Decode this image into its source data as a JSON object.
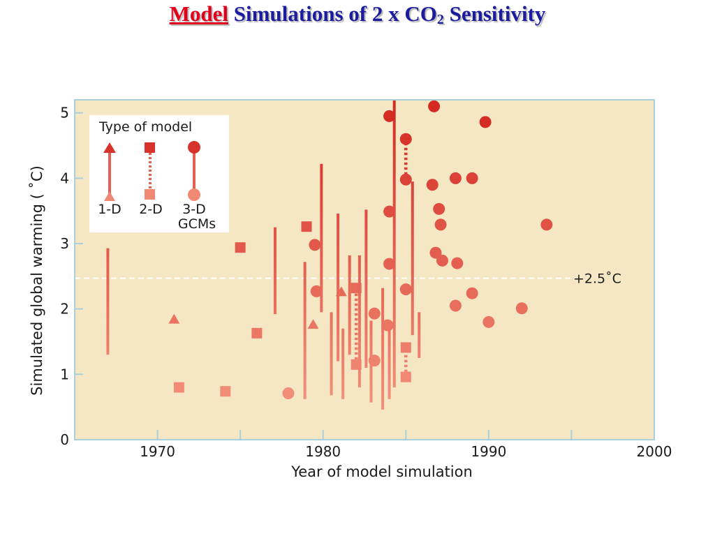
{
  "slide_title": {
    "part1": "Model",
    "part2": "Simulations of 2 x CO",
    "sub": "2",
    "part3": "Sensitivity"
  },
  "chart_data": {
    "type": "scatter",
    "xlabel": "Year of model simulation",
    "ylabel": "Simulated global warming ( ˚C)",
    "xlim": [
      1965,
      2000
    ],
    "ylim": [
      0,
      5.2
    ],
    "x_ticks": [
      1970,
      1980,
      1990,
      2000
    ],
    "y_ticks": [
      0,
      1,
      2,
      3,
      4,
      5
    ],
    "reference_line": {
      "y": 2.47,
      "label": "+2.5˚C"
    },
    "legend": {
      "title": "Type of model",
      "placement": "top-left",
      "entries": [
        "1-D",
        "2-D",
        "3-D",
        "GCMs"
      ]
    },
    "colors": {
      "background": "#f6e7c4",
      "frame": "#a8d0dc",
      "high": "#d42a22",
      "low": "#f2907a",
      "legend_box": "#ffffff"
    },
    "ranges_1d": [
      {
        "x": 1967.0,
        "low": 1.3,
        "high": 2.93
      },
      {
        "x": 1977.1,
        "low": 1.92,
        "high": 3.25
      },
      {
        "x": 1978.9,
        "low": 0.62,
        "high": 2.72
      },
      {
        "x": 1979.9,
        "low": 1.95,
        "high": 4.22
      },
      {
        "x": 1980.5,
        "low": 0.68,
        "high": 1.95
      },
      {
        "x": 1980.9,
        "low": 1.2,
        "high": 3.46
      },
      {
        "x": 1981.2,
        "low": 0.62,
        "high": 1.7
      },
      {
        "x": 1981.6,
        "low": 1.3,
        "high": 2.82
      },
      {
        "x": 1982.2,
        "low": 0.8,
        "high": 2.82
      },
      {
        "x": 1982.6,
        "low": 1.1,
        "high": 3.52
      },
      {
        "x": 1982.9,
        "low": 0.57,
        "high": 1.82
      },
      {
        "x": 1983.6,
        "low": 0.46,
        "high": 2.32
      },
      {
        "x": 1984.0,
        "low": 0.62,
        "high": 1.76
      },
      {
        "x": 1984.3,
        "low": 0.8,
        "high": 5.2
      },
      {
        "x": 1985.4,
        "low": 1.6,
        "high": 3.95
      },
      {
        "x": 1985.8,
        "low": 1.25,
        "high": 1.95
      }
    ],
    "ranges_2d": [
      {
        "x": 1982.0,
        "low": 1.15,
        "high": 2.32
      },
      {
        "x": 1985.0,
        "low": 0.96,
        "high": 1.41
      }
    ],
    "ranges_3d": [
      {
        "x": 1985.0,
        "low": 3.98,
        "high": 4.6
      }
    ],
    "points_1d": [
      {
        "x": 1971.0,
        "y": 1.84
      },
      {
        "x": 1979.4,
        "y": 1.76
      },
      {
        "x": 1981.1,
        "y": 2.26
      }
    ],
    "points_2d": [
      {
        "x": 1971.3,
        "y": 0.8
      },
      {
        "x": 1974.1,
        "y": 0.74
      },
      {
        "x": 1975.0,
        "y": 2.94
      },
      {
        "x": 1976.0,
        "y": 1.63
      },
      {
        "x": 1979.0,
        "y": 3.26
      },
      {
        "x": 1982.0,
        "y": 2.32
      },
      {
        "x": 1982.0,
        "y": 1.15
      },
      {
        "x": 1985.0,
        "y": 1.41
      },
      {
        "x": 1985.0,
        "y": 0.96
      }
    ],
    "points_3d": [
      {
        "x": 1977.9,
        "y": 0.71
      },
      {
        "x": 1979.5,
        "y": 2.98
      },
      {
        "x": 1979.6,
        "y": 2.27
      },
      {
        "x": 1983.1,
        "y": 1.21
      },
      {
        "x": 1983.1,
        "y": 1.93
      },
      {
        "x": 1983.9,
        "y": 1.75
      },
      {
        "x": 1984.0,
        "y": 2.69
      },
      {
        "x": 1984.0,
        "y": 3.49
      },
      {
        "x": 1984.0,
        "y": 4.95
      },
      {
        "x": 1985.0,
        "y": 4.6
      },
      {
        "x": 1985.0,
        "y": 3.98
      },
      {
        "x": 1985.0,
        "y": 2.3
      },
      {
        "x": 1986.6,
        "y": 3.9
      },
      {
        "x": 1986.7,
        "y": 5.1
      },
      {
        "x": 1986.8,
        "y": 2.86
      },
      {
        "x": 1987.0,
        "y": 3.53
      },
      {
        "x": 1987.1,
        "y": 3.29
      },
      {
        "x": 1987.2,
        "y": 2.74
      },
      {
        "x": 1988.0,
        "y": 4.0
      },
      {
        "x": 1988.0,
        "y": 2.05
      },
      {
        "x": 1988.1,
        "y": 2.7
      },
      {
        "x": 1989.0,
        "y": 4.0
      },
      {
        "x": 1989.0,
        "y": 2.24
      },
      {
        "x": 1989.8,
        "y": 4.86
      },
      {
        "x": 1990.0,
        "y": 1.8
      },
      {
        "x": 1992.0,
        "y": 2.01
      },
      {
        "x": 1993.5,
        "y": 3.29
      }
    ]
  }
}
